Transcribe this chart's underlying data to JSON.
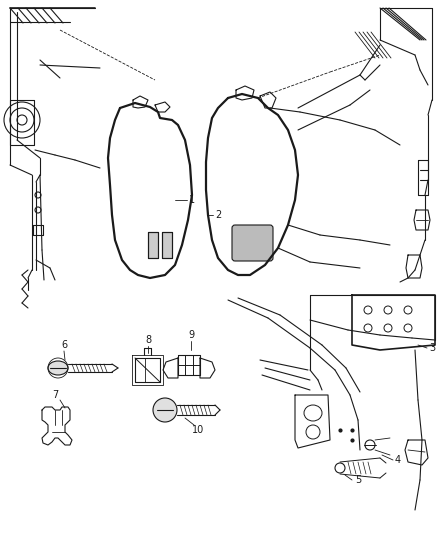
{
  "background_color": "#ffffff",
  "line_color": "#1a1a1a",
  "label_color": "#1a1a1a",
  "fig_width": 4.38,
  "fig_height": 5.33,
  "dpi": 100,
  "label_fontsize": 7.0
}
